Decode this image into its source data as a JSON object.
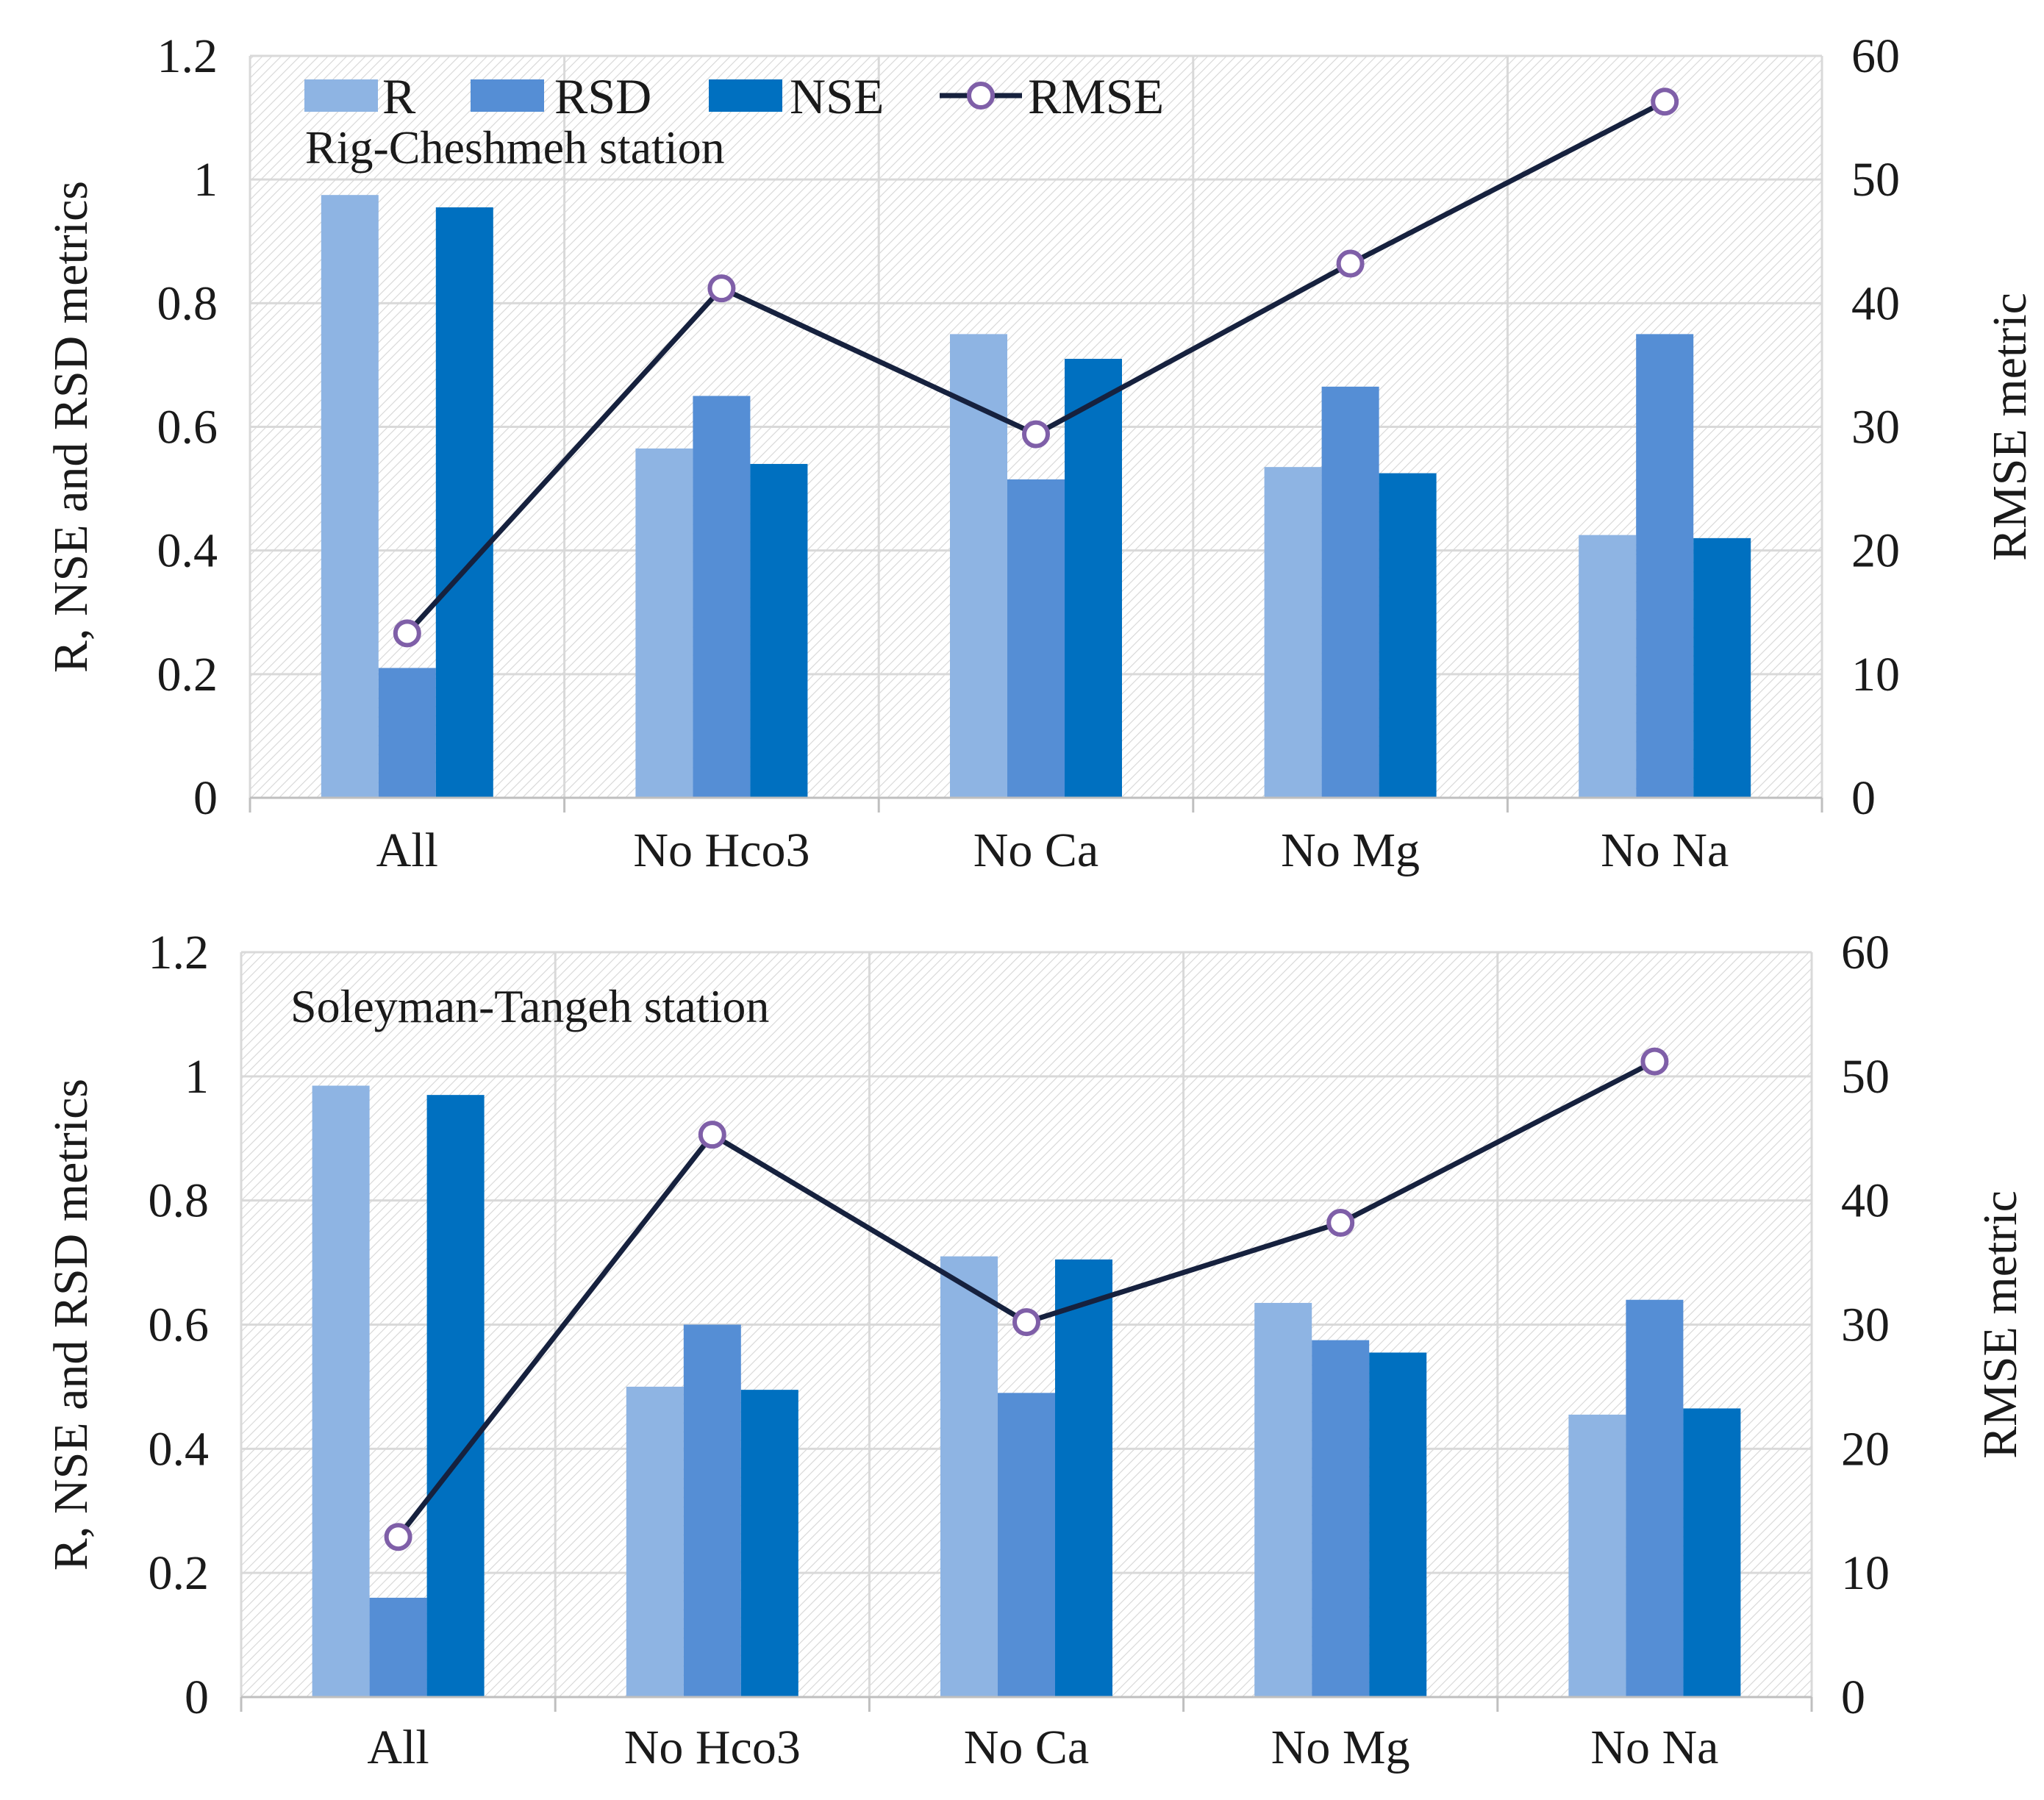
{
  "colors": {
    "R": "#8eb4e3",
    "RSD": "#558ed5",
    "NSE": "#0070c0",
    "RMSE_line": "#16213e",
    "RMSE_marker": "#7f5fa8",
    "grid": "#d9d9d9"
  },
  "legend": {
    "items": [
      {
        "name": "R",
        "kind": "bar"
      },
      {
        "name": "RSD",
        "kind": "bar"
      },
      {
        "name": "NSE",
        "kind": "bar"
      },
      {
        "name": "RMSE",
        "kind": "line"
      }
    ]
  },
  "chart_data": [
    {
      "type": "bar",
      "title": "Rig-Cheshmeh  station",
      "categories": [
        "All",
        "No Hco3",
        "No Ca",
        "No Mg",
        "No Na"
      ],
      "ylabel": "R, NSE and RSD metrics",
      "y2label": "RMSE metric",
      "ylim": [
        0,
        1.2
      ],
      "y2lim": [
        0,
        60
      ],
      "yticks": [
        "0",
        "0.2",
        "0.4",
        "0.6",
        "0.8",
        "1",
        "1.2"
      ],
      "y2ticks": [
        "0",
        "10",
        "20",
        "30",
        "40",
        "50",
        "60"
      ],
      "series": [
        {
          "name": "R",
          "axis": "left",
          "values": [
            0.975,
            0.565,
            0.75,
            0.535,
            0.425
          ]
        },
        {
          "name": "RSD",
          "axis": "left",
          "values": [
            0.21,
            0.65,
            0.515,
            0.665,
            0.75
          ]
        },
        {
          "name": "NSE",
          "axis": "left",
          "values": [
            0.955,
            0.54,
            0.71,
            0.525,
            0.42
          ]
        },
        {
          "name": "RMSE",
          "axis": "right",
          "type": "line",
          "values": [
            13.3,
            41.2,
            29.4,
            43.2,
            56.3
          ]
        }
      ]
    },
    {
      "type": "bar",
      "title": "Soleyman-Tangeh  station",
      "categories": [
        "All",
        "No Hco3",
        "No Ca",
        "No Mg",
        "No Na"
      ],
      "ylabel": "R, NSE and RSD metrics",
      "y2label": "RMSE metric",
      "ylim": [
        0,
        1.2
      ],
      "y2lim": [
        0,
        60
      ],
      "yticks": [
        "0",
        "0.2",
        "0.4",
        "0.6",
        "0.8",
        "1",
        "1.2"
      ],
      "y2ticks": [
        "0",
        "10",
        "20",
        "30",
        "40",
        "50",
        "60"
      ],
      "series": [
        {
          "name": "R",
          "axis": "left",
          "values": [
            0.985,
            0.5,
            0.71,
            0.635,
            0.455
          ]
        },
        {
          "name": "RSD",
          "axis": "left",
          "values": [
            0.16,
            0.6,
            0.49,
            0.575,
            0.64
          ]
        },
        {
          "name": "NSE",
          "axis": "left",
          "values": [
            0.97,
            0.495,
            0.705,
            0.555,
            0.465
          ]
        },
        {
          "name": "RMSE",
          "axis": "right",
          "type": "line",
          "values": [
            12.9,
            45.3,
            30.2,
            38.2,
            51.2
          ]
        }
      ]
    }
  ]
}
